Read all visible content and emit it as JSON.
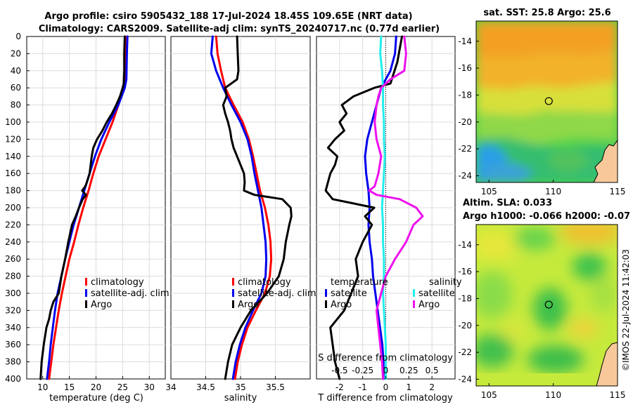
{
  "header": {
    "line1": "Argo profile: csiro 5905432_188 17-Jul-2024 18.45S 109.65E (NRT data)",
    "line2": "Climatology: CARS2009. Satellite-adj clim: synTS_20240717.nc (0.77d earlier)"
  },
  "credit": "©IMOS 22-Jul-2024 11:42:03",
  "colors": {
    "climatology": "#ff0000",
    "satellite": "#0000ee",
    "argo": "#000000",
    "sal_satellite": "#22eeee",
    "sal_argo": "#ee11ee",
    "land": "#f8c89a"
  },
  "chart_data": [
    {
      "type": "line",
      "name": "temperature-profile",
      "xlabel": "temperature (deg C)",
      "ylabel": "",
      "xlim": [
        7,
        33
      ],
      "ylim": [
        400,
        0
      ],
      "xticks": [
        10,
        15,
        20,
        25,
        30
      ],
      "yticks": [
        0,
        20,
        40,
        60,
        80,
        100,
        120,
        140,
        160,
        180,
        200,
        220,
        240,
        260,
        280,
        300,
        320,
        340,
        360,
        380,
        400
      ],
      "grid": true,
      "legend": {
        "position": "lower-right",
        "entries": [
          "climatology",
          "satellite-adj. clim",
          "Argo"
        ]
      },
      "series": [
        {
          "name": "climatology",
          "color": "#ff0000",
          "depth": [
            0,
            50,
            60,
            80,
            100,
            120,
            140,
            160,
            180,
            200,
            220,
            240,
            260,
            280,
            300,
            320,
            340,
            360,
            380,
            400
          ],
          "values": [
            25.5,
            25.4,
            25.2,
            24.2,
            23.1,
            21.8,
            20.5,
            19.5,
            18.6,
            17.6,
            16.7,
            15.9,
            15.0,
            14.3,
            13.6,
            13.0,
            12.5,
            12.0,
            11.6,
            11.2
          ]
        },
        {
          "name": "satellite-adj. clim",
          "color": "#0000ee",
          "depth": [
            0,
            20,
            50,
            60,
            80,
            100,
            120,
            140,
            160,
            180,
            200,
            220,
            240,
            260,
            280,
            300,
            320,
            340,
            360,
            380,
            400
          ],
          "values": [
            25.9,
            25.8,
            25.7,
            25.4,
            24.2,
            22.5,
            21.0,
            19.8,
            18.8,
            17.8,
            16.8,
            15.8,
            15.0,
            14.2,
            13.5,
            12.8,
            12.3,
            11.9,
            11.5,
            11.2,
            10.8
          ]
        },
        {
          "name": "Argo",
          "color": "#000000",
          "depth": [
            0,
            20,
            40,
            55,
            60,
            70,
            80,
            90,
            100,
            110,
            120,
            130,
            140,
            150,
            160,
            170,
            175,
            180,
            185,
            190,
            200,
            210,
            220,
            240,
            260,
            280,
            300,
            310,
            320,
            330,
            340,
            360,
            380,
            400
          ],
          "values": [
            25.4,
            25.3,
            25.3,
            25.2,
            25.0,
            24.5,
            23.8,
            23.0,
            22.0,
            21.2,
            20.2,
            19.5,
            19.2,
            19.0,
            18.8,
            18.3,
            18.0,
            17.4,
            18.1,
            17.5,
            16.8,
            16.2,
            15.5,
            14.8,
            14.2,
            13.5,
            13.0,
            12.0,
            11.5,
            11.2,
            10.7,
            10.2,
            9.8,
            9.6
          ]
        }
      ]
    },
    {
      "type": "line",
      "name": "salinity-profile",
      "xlabel": "salinity",
      "xlim": [
        34,
        36
      ],
      "ylim": [
        400,
        0
      ],
      "xticks": [
        34,
        34.5,
        35,
        35.5
      ],
      "grid": true,
      "legend": {
        "position": "lower-right",
        "entries": [
          "climatology",
          "satellite-adj. clim",
          "Argo"
        ]
      },
      "series": [
        {
          "name": "climatology",
          "color": "#ff0000",
          "depth": [
            0,
            20,
            40,
            60,
            80,
            100,
            120,
            140,
            160,
            180,
            200,
            220,
            240,
            260,
            280,
            300,
            320,
            340,
            360,
            380,
            400
          ],
          "values": [
            34.65,
            34.67,
            34.72,
            34.78,
            34.9,
            35.03,
            35.12,
            35.18,
            35.23,
            35.28,
            35.35,
            35.4,
            35.43,
            35.44,
            35.42,
            35.35,
            35.22,
            35.1,
            35.02,
            34.96,
            34.92
          ]
        },
        {
          "name": "satellite-adj. clim",
          "color": "#0000ee",
          "depth": [
            0,
            20,
            40,
            60,
            80,
            100,
            120,
            140,
            160,
            180,
            200,
            220,
            240,
            260,
            280,
            300,
            320,
            340,
            360,
            380,
            400
          ],
          "values": [
            34.6,
            34.58,
            34.65,
            34.75,
            34.87,
            35.0,
            35.1,
            35.16,
            35.2,
            35.25,
            35.3,
            35.33,
            35.36,
            35.37,
            35.36,
            35.3,
            35.18,
            35.07,
            34.99,
            34.93,
            34.89
          ]
        },
        {
          "name": "Argo",
          "color": "#000000",
          "depth": [
            0,
            20,
            40,
            50,
            60,
            70,
            80,
            90,
            100,
            110,
            120,
            130,
            140,
            150,
            160,
            170,
            180,
            185,
            190,
            200,
            210,
            220,
            240,
            260,
            280,
            300,
            320,
            340,
            360,
            380,
            400
          ],
          "values": [
            34.95,
            34.96,
            34.97,
            34.95,
            34.78,
            34.8,
            34.75,
            34.78,
            34.82,
            34.85,
            34.87,
            34.9,
            34.95,
            35.0,
            35.05,
            35.06,
            35.05,
            35.2,
            35.6,
            35.72,
            35.73,
            35.7,
            35.65,
            35.62,
            35.55,
            35.38,
            35.15,
            35.0,
            34.88,
            34.82,
            34.78
          ]
        }
      ]
    },
    {
      "type": "line",
      "name": "difference-profile",
      "xlabel": "T difference from climatology",
      "x2label": "S difference from climatology",
      "xlim": [
        -3,
        3
      ],
      "x2lim": [
        -0.75,
        0.75
      ],
      "ylim": [
        400,
        0
      ],
      "xticks": [
        -2,
        -1,
        0,
        1,
        2
      ],
      "x2ticks": [
        -0.5,
        -0.25,
        0,
        0.25,
        0.5
      ],
      "grid": true,
      "legend": {
        "position": "lower-center",
        "temperature_header": "temperature",
        "salinity_header": "salinity",
        "entries": [
          "satellite",
          "Argo",
          "satellite",
          "Argo"
        ]
      },
      "series": [
        {
          "name": "temperature satellite",
          "color": "#0000ee",
          "depth": [
            0,
            20,
            40,
            60,
            80,
            100,
            120,
            140,
            160,
            180,
            200,
            220,
            240,
            260,
            280,
            300,
            320,
            340,
            360,
            380,
            400
          ],
          "values": [
            0.45,
            0.4,
            0.2,
            -0.2,
            -0.4,
            -0.6,
            -0.8,
            -0.9,
            -0.85,
            -0.75,
            -0.7,
            -0.75,
            -0.7,
            -0.6,
            -0.55,
            -0.45,
            -0.35,
            -0.25,
            -0.15,
            -0.1,
            -0.1
          ]
        },
        {
          "name": "temperature Argo",
          "color": "#000000",
          "depth": [
            0,
            30,
            55,
            60,
            70,
            80,
            90,
            100,
            110,
            120,
            130,
            140,
            150,
            160,
            170,
            180,
            190,
            195,
            200,
            210,
            220,
            240,
            260,
            280,
            300,
            320,
            340,
            360,
            380,
            400
          ],
          "values": [
            0.7,
            0.5,
            0.2,
            -0.5,
            -1.4,
            -1.9,
            -1.7,
            -2.0,
            -1.8,
            -2.2,
            -2.5,
            -2.1,
            -2.2,
            -2.4,
            -2.5,
            -2.6,
            -2.3,
            -1.4,
            -0.5,
            -0.9,
            -0.6,
            -1.0,
            -1.3,
            -1.2,
            -1.5,
            -1.8,
            -2.4,
            -2.3,
            -2.2,
            -2.0
          ]
        },
        {
          "name": "salinity satellite",
          "color": "#22eeee",
          "depth": [
            0,
            20,
            40,
            60,
            80,
            100,
            120,
            140,
            160,
            180,
            200,
            220,
            240,
            260,
            280,
            300,
            320,
            340,
            360,
            380,
            400
          ],
          "values": [
            -0.05,
            -0.06,
            -0.04,
            -0.03,
            -0.03,
            -0.02,
            -0.02,
            -0.01,
            -0.02,
            -0.03,
            -0.04,
            -0.03,
            -0.03,
            -0.02,
            -0.02,
            -0.03,
            -0.02,
            -0.01,
            0.0,
            0.0,
            0.0
          ]
        },
        {
          "name": "salinity Argo",
          "color": "#ee11ee",
          "depth": [
            0,
            20,
            40,
            50,
            60,
            70,
            80,
            100,
            120,
            140,
            160,
            175,
            180,
            185,
            190,
            200,
            210,
            215,
            220,
            240,
            260,
            280,
            300,
            320,
            340,
            360,
            380,
            400
          ],
          "values": [
            0.2,
            0.22,
            0.2,
            0.05,
            -0.05,
            -0.08,
            -0.1,
            -0.12,
            -0.1,
            -0.05,
            -0.08,
            -0.12,
            -0.18,
            -0.1,
            0.15,
            0.33,
            0.4,
            0.35,
            0.3,
            0.22,
            0.1,
            0.0,
            -0.05,
            -0.1,
            -0.08,
            -0.06,
            -0.04,
            -0.03
          ]
        }
      ]
    },
    {
      "type": "heatmap",
      "name": "sst-map",
      "title": "sat. SST: 25.8 Argo: 25.6",
      "xlim": [
        104,
        115
      ],
      "ylim": [
        -24.5,
        -12.5
      ],
      "xticks": [
        105,
        110,
        115
      ],
      "yticks": [
        -14,
        -16,
        -18,
        -20,
        -22,
        -24
      ],
      "marker": {
        "lon": 109.65,
        "lat": -18.45
      }
    },
    {
      "type": "heatmap",
      "name": "sla-map",
      "title": "Altim. SLA: 0.033",
      "subtitle": "Argo h1000: -0.066 h2000: -0.07",
      "xlim": [
        104,
        115
      ],
      "ylim": [
        -24.5,
        -12.5
      ],
      "xticks": [
        105,
        110,
        115
      ],
      "yticks": [
        -14,
        -16,
        -18,
        -20,
        -22,
        -24
      ],
      "marker": {
        "lon": 109.65,
        "lat": -18.45
      }
    }
  ]
}
